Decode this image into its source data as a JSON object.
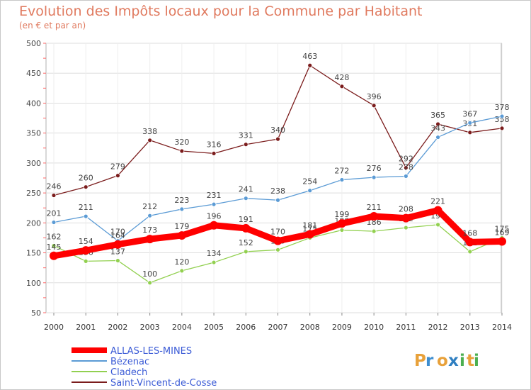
{
  "chart_data": {
    "type": "line",
    "title": "Evolution des Impôts locaux pour la Commune par Habitant",
    "subtitle": "(en € et par an)",
    "x": [
      "2000",
      "2001",
      "2002",
      "2003",
      "2004",
      "2005",
      "2006",
      "2007",
      "2008",
      "2009",
      "2010",
      "2011",
      "2012",
      "2013",
      "2014"
    ],
    "ylim": [
      50,
      500
    ],
    "yticks": [
      50,
      100,
      150,
      200,
      250,
      300,
      350,
      400,
      450,
      500
    ],
    "grid": true,
    "legend_position": "bottom-left",
    "series": [
      {
        "name": "Saint-Vincent-de-Cosse",
        "color": "#7b1c1c",
        "values": [
          246,
          260,
          279,
          338,
          320,
          316,
          331,
          340,
          463,
          428,
          396,
          292,
          365,
          351,
          358
        ]
      },
      {
        "name": "Bézenac",
        "color": "#5b9bd5",
        "values": [
          201,
          211,
          170,
          212,
          223,
          231,
          241,
          238,
          254,
          272,
          276,
          278,
          343,
          367,
          378
        ]
      },
      {
        "name": "Cladech",
        "color": "#92d050",
        "values": [
          162,
          136,
          137,
          100,
          120,
          134,
          152,
          155,
          175,
          188,
          186,
          192,
          197,
          152,
          175
        ]
      },
      {
        "name": "ALLAS-LES-MINES",
        "color": "#ff0000",
        "values": [
          145,
          154,
          164,
          173,
          179,
          196,
          191,
          170,
          181,
          199,
          211,
          208,
          221,
          168,
          169
        ]
      }
    ]
  },
  "legend_items": [
    {
      "name": "ALLAS-LES-MINES",
      "color": "#ff0000"
    },
    {
      "name": "Bézenac",
      "color": "#5b9bd5"
    },
    {
      "name": "Cladech",
      "color": "#92d050"
    },
    {
      "name": "Saint-Vincent-de-Cosse",
      "color": "#7b1c1c"
    }
  ],
  "brand": {
    "letters": [
      "P",
      "r",
      "o",
      "x",
      "i",
      "t",
      "i"
    ],
    "colors": [
      "#e8a13a",
      "#3e8ed0",
      "#e8a13a",
      "#2f7fc1",
      "#4caf50",
      "#e8a13a",
      "#4caf50"
    ]
  }
}
